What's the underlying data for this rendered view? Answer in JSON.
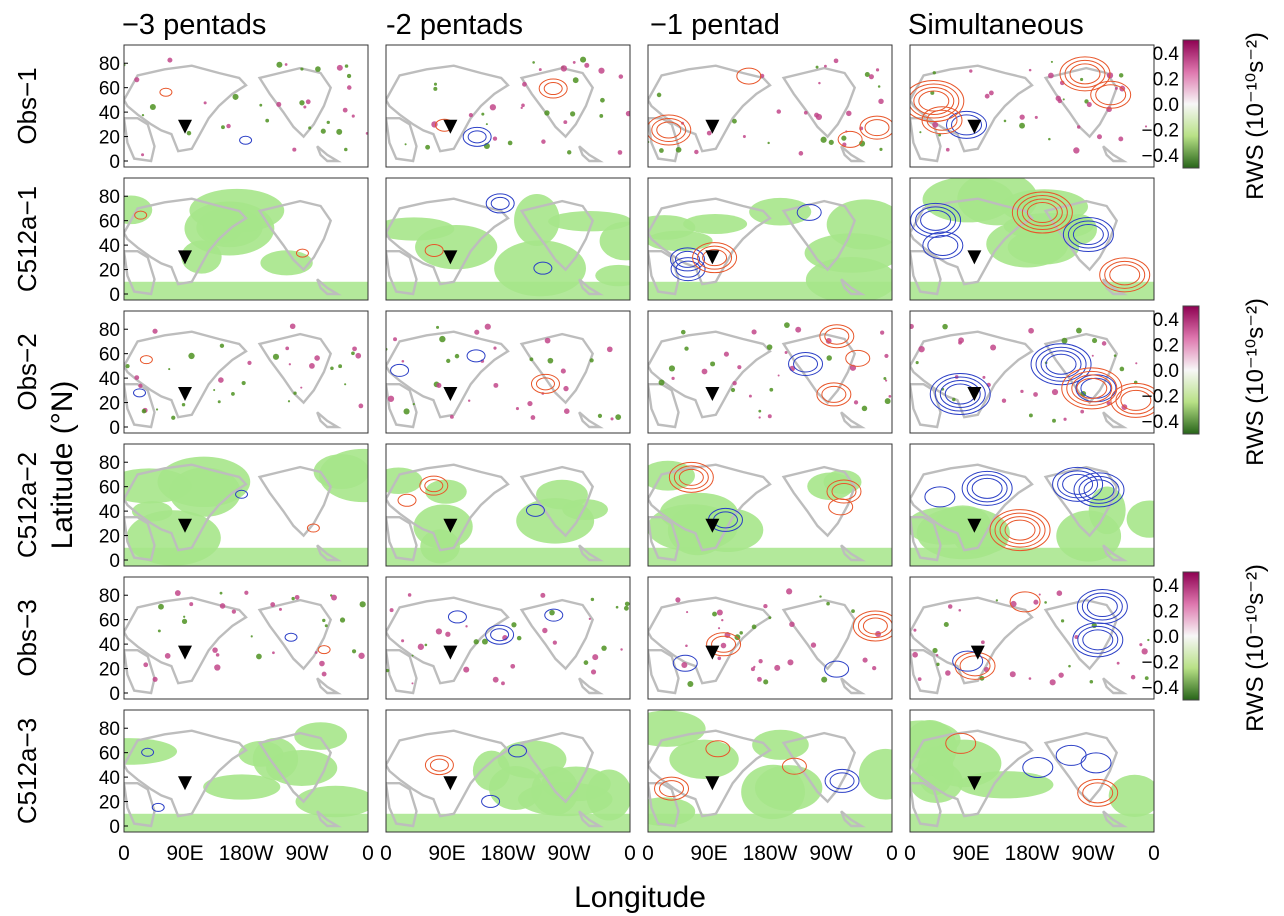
{
  "chart_data": {
    "type": "map-panel-grid",
    "columns": [
      "−3 pentads",
      "-2 pentads",
      "−1 pentad",
      "Simultaneous"
    ],
    "rows": [
      "Obs−1",
      "C512a−1",
      "Obs−2",
      "C512a−2",
      "Obs−3",
      "C512a−3"
    ],
    "ylabel": "Latitude (°N)",
    "xlabel": "Longitude",
    "y_ticks": [
      "80",
      "60",
      "40",
      "20",
      "0"
    ],
    "x_ticks": [
      "0",
      "90E",
      "180W",
      "90W",
      "0"
    ],
    "ylim": [
      0,
      90
    ],
    "colorbar": {
      "label": "RWS (10⁻¹⁰s⁻²)",
      "ticks": [
        "0.4",
        "0.2",
        "0.0",
        "−0.2",
        "−0.4"
      ],
      "range": [
        -0.5,
        0.5
      ],
      "colors": {
        "positive": "#8e0152",
        "negative": "#3a7d14",
        "zero": "#f7f7f7"
      }
    },
    "marker_longitudes": [
      [
        90,
        95,
        95,
        95
      ],
      [
        90,
        95,
        95,
        95
      ],
      [
        90,
        95,
        95,
        95
      ],
      [
        90,
        95,
        95,
        95
      ],
      [
        90,
        95,
        95,
        100
      ],
      [
        90,
        95,
        95,
        95
      ]
    ],
    "marker_latitudes": [
      [
        28,
        28,
        28,
        28
      ],
      [
        30,
        30,
        30,
        30
      ],
      [
        27,
        27,
        27,
        27
      ],
      [
        28,
        28,
        28,
        28
      ],
      [
        33,
        33,
        33,
        33
      ],
      [
        35,
        35,
        35,
        35
      ]
    ],
    "colors": {
      "positive_contour": "#e8562a",
      "negative_contour": "#2b3fc6",
      "model_shading": "#a6e58a",
      "coastline": "#bdbdbd"
    }
  }
}
